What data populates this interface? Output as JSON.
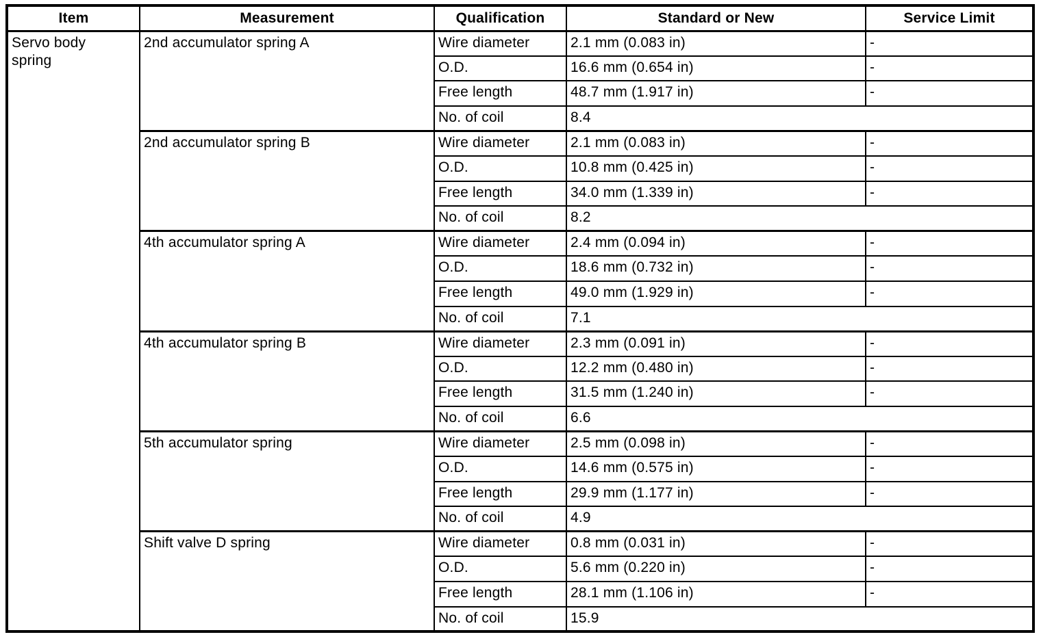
{
  "header": {
    "item": "Item",
    "measurement": "Measurement",
    "qualification": "Qualification",
    "standard": "Standard or New",
    "service_limit": "Service Limit"
  },
  "item_label": "Servo body spring",
  "groups": [
    {
      "measurement": "2nd accumulator spring A",
      "rows": [
        {
          "qualification": "Wire diameter",
          "standard": "2.1 mm (0.083 in)",
          "service_limit": "-"
        },
        {
          "qualification": "O.D.",
          "standard": "16.6 mm (0.654 in)",
          "service_limit": "-"
        },
        {
          "qualification": "Free length",
          "standard": "48.7 mm (1.917 in)",
          "service_limit": "-"
        },
        {
          "qualification": "No. of coil",
          "standard": "8.4"
        }
      ]
    },
    {
      "measurement": "2nd accumulator spring B",
      "rows": [
        {
          "qualification": "Wire diameter",
          "standard": "2.1 mm (0.083 in)",
          "service_limit": "-"
        },
        {
          "qualification": "O.D.",
          "standard": "10.8 mm (0.425 in)",
          "service_limit": "-"
        },
        {
          "qualification": "Free length",
          "standard": "34.0 mm (1.339 in)",
          "service_limit": "-"
        },
        {
          "qualification": "No. of coil",
          "standard": "8.2"
        }
      ]
    },
    {
      "measurement": "4th accumulator spring A",
      "rows": [
        {
          "qualification": "Wire diameter",
          "standard": "2.4 mm (0.094 in)",
          "service_limit": "-"
        },
        {
          "qualification": "O.D.",
          "standard": "18.6 mm (0.732 in)",
          "service_limit": "-"
        },
        {
          "qualification": "Free length",
          "standard": "49.0 mm (1.929 in)",
          "service_limit": "-"
        },
        {
          "qualification": "No. of coil",
          "standard": "7.1"
        }
      ]
    },
    {
      "measurement": "4th accumulator spring B",
      "rows": [
        {
          "qualification": "Wire diameter",
          "standard": "2.3 mm (0.091 in)",
          "service_limit": "-"
        },
        {
          "qualification": "O.D.",
          "standard": "12.2 mm (0.480 in)",
          "service_limit": "-"
        },
        {
          "qualification": "Free length",
          "standard": "31.5 mm (1.240 in)",
          "service_limit": "-"
        },
        {
          "qualification": "No. of coil",
          "standard": "6.6"
        }
      ]
    },
    {
      "measurement": "5th accumulator spring",
      "rows": [
        {
          "qualification": "Wire diameter",
          "standard": "2.5 mm (0.098 in)",
          "service_limit": "-"
        },
        {
          "qualification": "O.D.",
          "standard": "14.6 mm (0.575 in)",
          "service_limit": "-"
        },
        {
          "qualification": "Free length",
          "standard": "29.9 mm (1.177 in)",
          "service_limit": "-"
        },
        {
          "qualification": "No. of coil",
          "standard": "4.9"
        }
      ]
    },
    {
      "measurement": "Shift valve D spring",
      "rows": [
        {
          "qualification": "Wire diameter",
          "standard": "0.8 mm (0.031 in)",
          "service_limit": "-"
        },
        {
          "qualification": "O.D.",
          "standard": "5.6 mm (0.220 in)",
          "service_limit": "-"
        },
        {
          "qualification": "Free length",
          "standard": "28.1 mm (1.106 in)",
          "service_limit": "-"
        },
        {
          "qualification": "No. of coil",
          "standard": "15.9"
        }
      ]
    }
  ],
  "colors": {
    "border": "#000000",
    "background": "#ffffff",
    "text": "#000000"
  }
}
